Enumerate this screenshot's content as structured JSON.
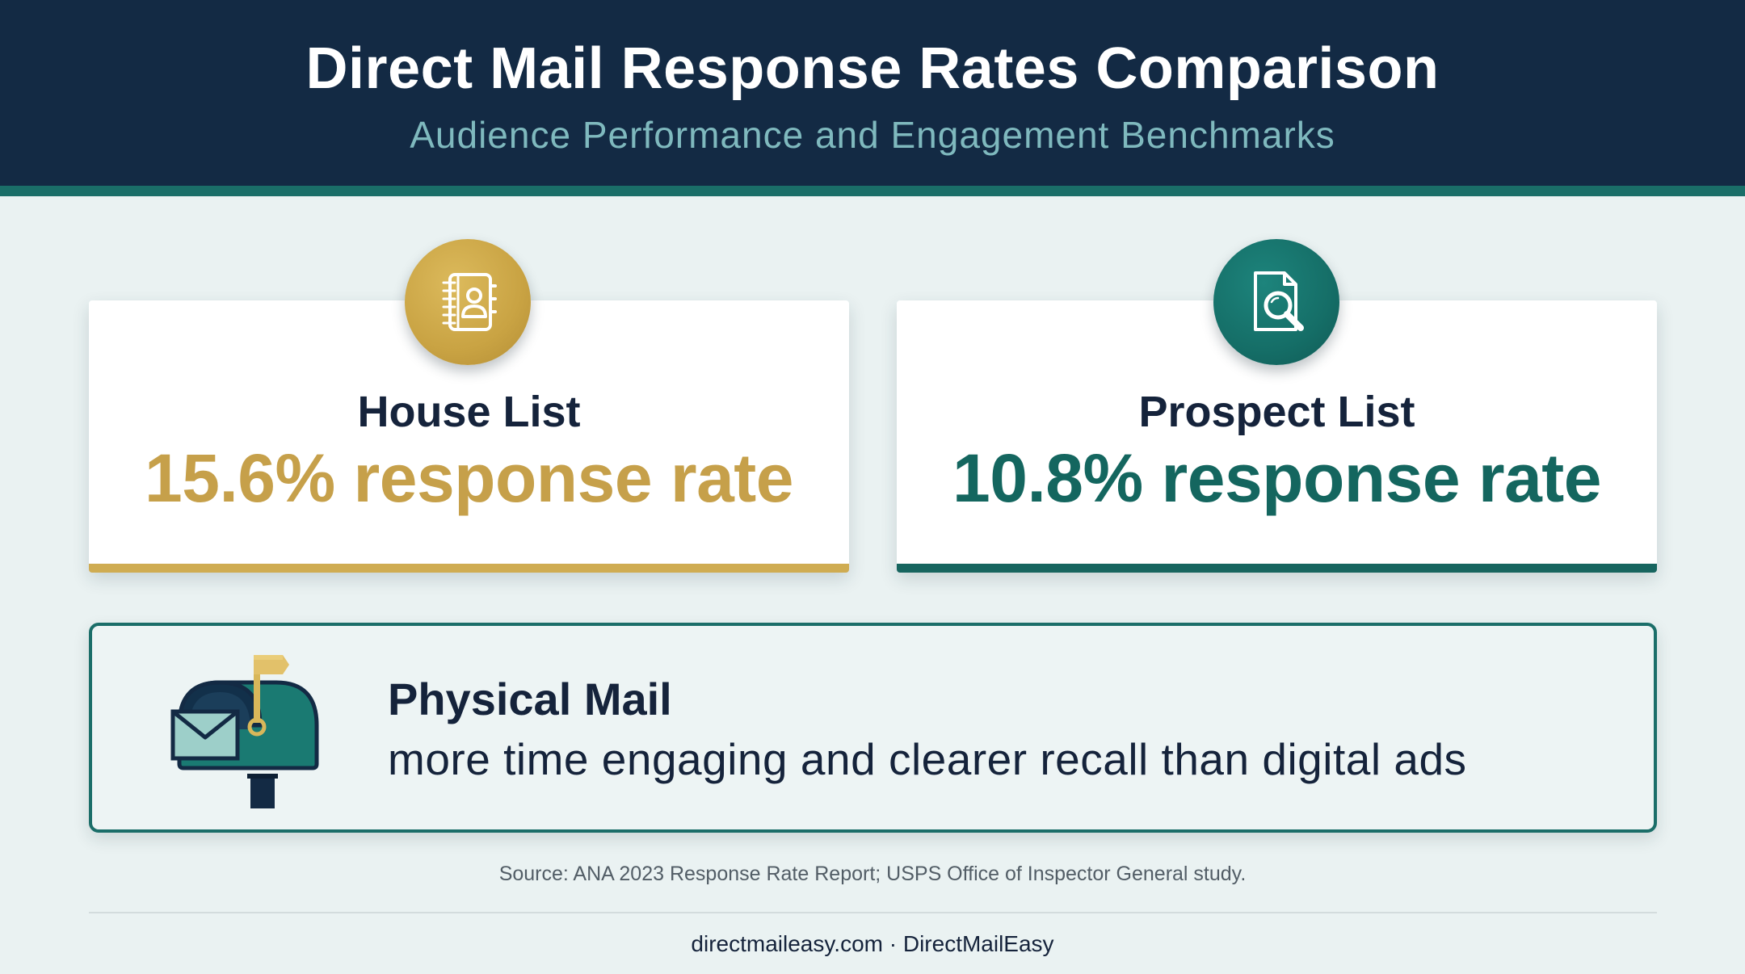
{
  "header": {
    "title": "Direct Mail Response Rates Comparison",
    "subtitle": "Audience Performance and Engagement Benchmarks"
  },
  "cards": [
    {
      "label": "House List",
      "value": "15.6% response rate",
      "icon": "address-book-icon",
      "accent": "#c9a343"
    },
    {
      "label": "Prospect List",
      "value": "10.8% response rate",
      "icon": "document-search-icon",
      "accent": "#156e67"
    }
  ],
  "mail_panel": {
    "heading": "Physical Mail",
    "body": "more time engaging and clearer recall than digital ads",
    "icon": "mailbox-icon"
  },
  "source": "Source: ANA 2023 Response Rate Report; USPS Office of Inspector General study.",
  "footer": "directmaileasy.com · DirectMailEasy",
  "colors": {
    "header_bg": "#132a44",
    "header_accent": "#1a6e68",
    "gold": "#c9a343",
    "teal": "#156e67",
    "page_bg": "#eaf2f2"
  }
}
